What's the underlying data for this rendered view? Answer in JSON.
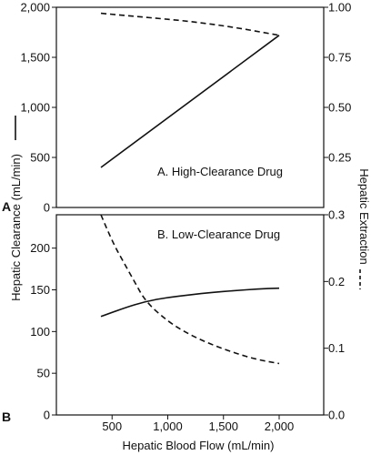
{
  "chart_data": [
    {
      "type": "line",
      "panel_letter": "A",
      "caption": "A. High-Clearance Drug",
      "ylim_left": [
        0,
        2000
      ],
      "ylim_right": [
        0,
        1.0
      ],
      "xlim": [
        0,
        2400
      ],
      "yticks_left": [
        0,
        500,
        1000,
        1500,
        2000
      ],
      "yticks_left_labels": [
        "0",
        "500",
        "1,000",
        "1,500",
        "2,000"
      ],
      "yticks_right": [
        0.25,
        0.5,
        0.75,
        1.0
      ],
      "yticks_right_labels": [
        "0.25",
        "0.50",
        "0.75",
        "1.00"
      ],
      "series": [
        {
          "axis": "left",
          "style": "solid",
          "x": [
            400,
            2000
          ],
          "y": [
            400,
            1720
          ]
        },
        {
          "axis": "right",
          "style": "dashed",
          "x": [
            400,
            800,
            1200,
            1600,
            2000
          ],
          "y": [
            0.97,
            0.95,
            0.93,
            0.9,
            0.86
          ]
        }
      ]
    },
    {
      "type": "line",
      "panel_letter": "B",
      "caption": "B. Low-Clearance Drug",
      "ylim_left": [
        0,
        240
      ],
      "ylim_right": [
        0,
        0.3
      ],
      "xlim": [
        0,
        2400
      ],
      "yticks_left": [
        0,
        50,
        100,
        150,
        200
      ],
      "yticks_left_labels": [
        "0",
        "50",
        "100",
        "150",
        "200"
      ],
      "yticks_right": [
        0,
        0.1,
        0.2,
        0.3
      ],
      "yticks_right_labels": [
        "0.0",
        "0.1",
        "0.2",
        "0.3"
      ],
      "xticks": [
        500,
        1000,
        1500,
        2000
      ],
      "xticks_labels": [
        "500",
        "1,000",
        "1,500",
        "2,000"
      ],
      "series": [
        {
          "axis": "left",
          "style": "solid",
          "x": [
            400,
            600,
            800,
            1000,
            1200,
            1400,
            1600,
            1800,
            2000
          ],
          "y": [
            118,
            128,
            136,
            141,
            144,
            147,
            149,
            151,
            152
          ]
        },
        {
          "axis": "right",
          "style": "dashed",
          "x": [
            400,
            500,
            600,
            700,
            800,
            1000,
            1200,
            1400,
            1600,
            1800,
            2000
          ],
          "y": [
            0.3,
            0.26,
            0.23,
            0.2,
            0.17,
            0.14,
            0.12,
            0.105,
            0.093,
            0.083,
            0.077
          ]
        }
      ]
    }
  ],
  "xlabel": "Hepatic Blood Flow (mL/min)",
  "ylabel_left": "Hepatic Clearance (mL/min)",
  "ylabel_right": "Hepatic Extraction"
}
